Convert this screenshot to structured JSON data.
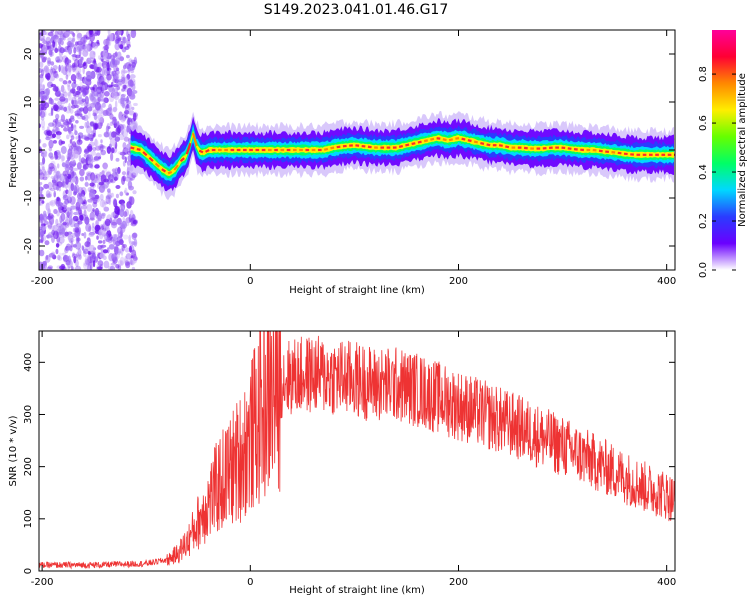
{
  "title": "S149.2023.041.01.46.G17",
  "chart_data": [
    {
      "type": "heatmap",
      "xlabel": "Height of straight line (km)",
      "ylabel": "Frequency (Hz)",
      "xlim": [
        -203,
        408
      ],
      "ylim": [
        -25,
        25
      ],
      "xticks": [
        "-200",
        "0",
        "200",
        "400"
      ],
      "yticks": [
        "-20",
        "-10",
        "0",
        "10",
        "20"
      ],
      "ridge": {
        "x": [
          -115,
          -105,
          -95,
          -85,
          -78,
          -72,
          -66,
          -62,
          -58,
          -55,
          -52,
          -48,
          -44,
          -40,
          -30,
          -20,
          0,
          20,
          40,
          60,
          70,
          80,
          90,
          100,
          120,
          140,
          150,
          160,
          170,
          180,
          190,
          200,
          210,
          220,
          230,
          240,
          250,
          260,
          270,
          280,
          290,
          300,
          310,
          320,
          330,
          340,
          350,
          360,
          370,
          380,
          390,
          400,
          408
        ],
        "y": [
          0.5,
          0,
          -2,
          -4,
          -5,
          -4,
          -2,
          -1.5,
          1,
          3.5,
          1,
          -0.5,
          -0.5,
          0,
          0,
          0,
          0,
          0,
          0,
          0,
          0,
          0.5,
          0.8,
          1,
          0.5,
          0.5,
          1,
          1.5,
          2,
          2.5,
          2,
          2.5,
          2,
          1.5,
          1,
          1,
          0.5,
          0.5,
          0.3,
          0.3,
          0.5,
          0.5,
          0.2,
          0,
          0,
          -0.3,
          -0.5,
          -0.8,
          -1,
          -1,
          -1,
          -1,
          -1
        ]
      },
      "noise_region": [
        -203,
        -110
      ],
      "colorbar": {
        "label": "Normalized spectral amplitude",
        "ticks": [
          "0.0",
          "0.2",
          "0.4",
          "0.6",
          "0.8"
        ],
        "range": [
          0,
          0.98
        ],
        "colors": [
          "#ffffff",
          "#6a00ff",
          "#2a3cff",
          "#00d8ff",
          "#00ff66",
          "#66ff00",
          "#ffee00",
          "#ff8800",
          "#ff0033",
          "#ff0099"
        ]
      }
    },
    {
      "type": "line",
      "xlabel": "Height of straight line (km)",
      "ylabel": "SNR (10 * v/v)",
      "xlim": [
        -203,
        408
      ],
      "ylim": [
        0,
        460
      ],
      "xticks": [
        "-200",
        "0",
        "200",
        "400"
      ],
      "yticks": [
        "0",
        "100",
        "200",
        "300",
        "400"
      ],
      "color": "#ee3333",
      "envelope": {
        "x": [
          -203,
          -150,
          -100,
          -80,
          -70,
          -60,
          -50,
          -40,
          -30,
          -20,
          -10,
          0,
          10,
          20,
          30,
          40,
          60,
          80,
          100,
          120,
          140,
          160,
          180,
          200,
          220,
          240,
          260,
          280,
          300,
          320,
          340,
          360,
          380,
          400,
          408
        ],
        "y": [
          12,
          12,
          15,
          22,
          35,
          60,
          100,
          140,
          175,
          200,
          230,
          270,
          320,
          355,
          375,
          380,
          385,
          380,
          375,
          365,
          365,
          355,
          340,
          325,
          310,
          295,
          280,
          262,
          245,
          225,
          205,
          185,
          165,
          150,
          140
        ]
      }
    }
  ]
}
